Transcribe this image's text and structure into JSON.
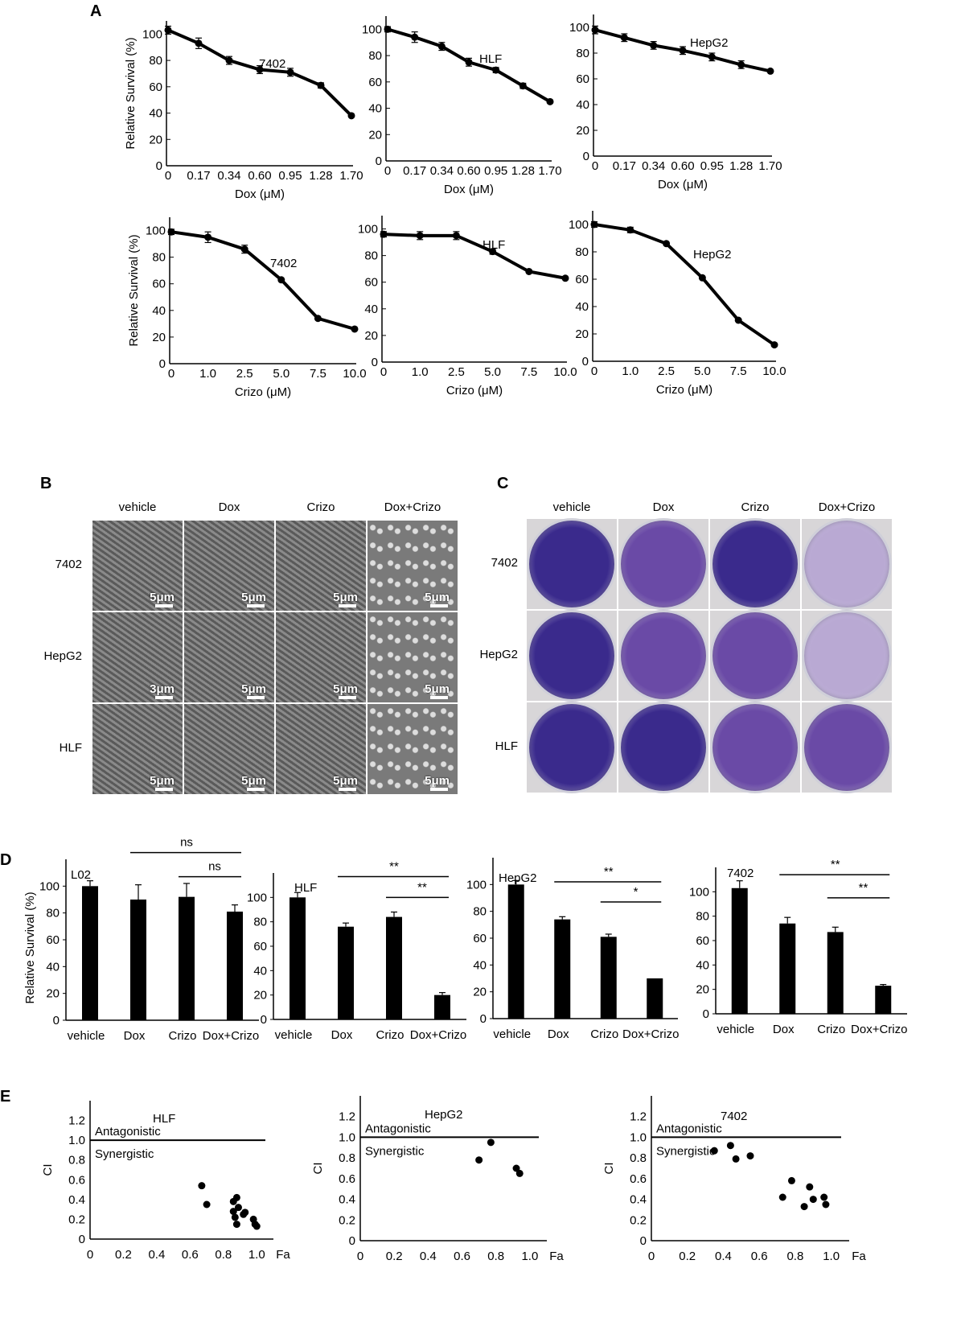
{
  "panels": {
    "A": "A",
    "B": "B",
    "C": "C",
    "D": "D",
    "E": "E"
  },
  "colors": {
    "line": "#000000",
    "bar": "#000000",
    "stain_dark": "#3a2a8c",
    "stain_mid": "#6a4aa6",
    "stain_light": "#b9a9d3",
    "micro": "#6d6d6d"
  },
  "chart_data": [
    {
      "panel": "A",
      "type": "line",
      "label": "7402",
      "xlabel": "Dox (μM)",
      "ylabel": "Relative Survival (%)",
      "x_ticks": [
        "0",
        "0.17",
        "0.34",
        "0.60",
        "0.95",
        "1.28",
        "1.70"
      ],
      "y_ticks": [
        "0",
        "20",
        "40",
        "60",
        "80",
        "100"
      ],
      "ylim": [
        0,
        110
      ],
      "series": [
        {
          "values": [
            103,
            93,
            80,
            73,
            71,
            61,
            38
          ],
          "errors": [
            3,
            4,
            3,
            3,
            3,
            2,
            0
          ]
        }
      ]
    },
    {
      "panel": "A",
      "type": "line",
      "label": "HLF",
      "xlabel": "Dox (μM)",
      "ylabel": "",
      "x_ticks": [
        "0",
        "0.17",
        "0.34",
        "0.60",
        "0.95",
        "1.28",
        "1.70"
      ],
      "y_ticks": [
        "0",
        "20",
        "40",
        "60",
        "80",
        "100"
      ],
      "ylim": [
        0,
        110
      ],
      "series": [
        {
          "values": [
            100,
            94,
            87,
            75,
            69,
            57,
            45
          ],
          "errors": [
            2,
            4,
            3,
            3,
            2,
            2,
            0
          ]
        }
      ]
    },
    {
      "panel": "A",
      "type": "line",
      "label": "HepG2",
      "xlabel": "Dox (μM)",
      "ylabel": "",
      "x_ticks": [
        "0",
        "0.17",
        "0.34",
        "0.60",
        "0.95",
        "1.28",
        "1.70"
      ],
      "y_ticks": [
        "0",
        "20",
        "40",
        "60",
        "80",
        "100"
      ],
      "ylim": [
        0,
        110
      ],
      "series": [
        {
          "values": [
            98,
            92,
            86,
            82,
            77,
            71,
            66
          ],
          "errors": [
            3,
            3,
            3,
            3,
            3,
            3,
            0
          ]
        }
      ]
    },
    {
      "panel": "A",
      "type": "line",
      "label": "7402",
      "xlabel": "Crizo (μM)",
      "ylabel": "Relative Survival (%)",
      "x_ticks": [
        "0",
        "1.0",
        "2.5",
        "5.0",
        "7.5",
        "10.0"
      ],
      "y_ticks": [
        "0",
        "20",
        "40",
        "60",
        "80",
        "100"
      ],
      "ylim": [
        0,
        110
      ],
      "series": [
        {
          "x": [
            0,
            1,
            2,
            3,
            4,
            5
          ],
          "values": [
            99,
            95,
            86,
            63,
            34,
            26
          ],
          "errors": [
            2,
            4,
            3,
            0,
            0,
            0
          ]
        }
      ]
    },
    {
      "panel": "A",
      "type": "line",
      "label": "HLF",
      "xlabel": "Crizo (μM)",
      "ylabel": "",
      "x_ticks": [
        "0",
        "1.0",
        "2.5",
        "5.0",
        "7.5",
        "10.0"
      ],
      "y_ticks": [
        "0",
        "20",
        "40",
        "60",
        "80",
        "100"
      ],
      "ylim": [
        0,
        110
      ],
      "series": [
        {
          "values": [
            96,
            95,
            95,
            83,
            68,
            63
          ],
          "errors": [
            2,
            3,
            3,
            2,
            0,
            0
          ]
        }
      ]
    },
    {
      "panel": "A",
      "type": "line",
      "label": "HepG2",
      "xlabel": "Crizo (μM)",
      "ylabel": "",
      "x_ticks": [
        "0",
        "1.0",
        "2.5",
        "5.0",
        "7.5",
        "10.0"
      ],
      "y_ticks": [
        "0",
        "20",
        "40",
        "60",
        "80",
        "100"
      ],
      "ylim": [
        0,
        110
      ],
      "series": [
        {
          "values": [
            100,
            96,
            86,
            61,
            30,
            12
          ],
          "errors": [
            2,
            2,
            1,
            0,
            0,
            0
          ]
        }
      ]
    },
    {
      "panel": "D",
      "type": "bar",
      "label": "L02",
      "ylabel": "Relative Survival (%)",
      "categories": [
        "vehicle",
        "Dox",
        "Crizo",
        "Dox+Crizo"
      ],
      "values": [
        100,
        90,
        92,
        81
      ],
      "errors": [
        4,
        11,
        10,
        5
      ],
      "y_ticks": [
        "0",
        "20",
        "40",
        "60",
        "80",
        "100"
      ],
      "ylim": [
        0,
        120
      ],
      "significance": [
        {
          "from": 1,
          "to": 3,
          "label": "ns",
          "level": 125
        },
        {
          "from": 2,
          "to": 3,
          "label": "ns",
          "level": 107
        }
      ]
    },
    {
      "panel": "D",
      "type": "bar",
      "label": "HLF",
      "ylabel": "",
      "categories": [
        "vehicle",
        "Dox",
        "Crizo",
        "Dox+Crizo"
      ],
      "values": [
        100,
        76,
        84,
        20
      ],
      "errors": [
        4,
        3,
        4,
        2
      ],
      "y_ticks": [
        "0",
        "20",
        "40",
        "60",
        "80",
        "100"
      ],
      "ylim": [
        0,
        120
      ],
      "significance": [
        {
          "from": 1,
          "to": 3,
          "label": "**",
          "level": 117
        },
        {
          "from": 2,
          "to": 3,
          "label": "**",
          "level": 100
        }
      ]
    },
    {
      "panel": "D",
      "type": "bar",
      "label": "HepG2",
      "ylabel": "",
      "categories": [
        "vehicle",
        "Dox",
        "Crizo",
        "Dox+Crizo"
      ],
      "values": [
        100,
        74,
        61,
        30
      ],
      "errors": [
        3,
        2,
        2,
        0
      ],
      "y_ticks": [
        "0",
        "20",
        "40",
        "60",
        "80",
        "100"
      ],
      "ylim": [
        0,
        120
      ],
      "significance": [
        {
          "from": 1,
          "to": 3,
          "label": "**",
          "level": 102
        },
        {
          "from": 2,
          "to": 3,
          "label": "*",
          "level": 87
        }
      ]
    },
    {
      "panel": "D",
      "type": "bar",
      "label": "7402",
      "ylabel": "",
      "categories": [
        "vehicle",
        "Dox",
        "Crizo",
        "Dox+Crizo"
      ],
      "values": [
        103,
        74,
        67,
        23
      ],
      "errors": [
        6,
        5,
        4,
        1
      ],
      "y_ticks": [
        "0",
        "20",
        "40",
        "60",
        "80",
        "100"
      ],
      "ylim": [
        0,
        120
      ],
      "significance": [
        {
          "from": 1,
          "to": 3,
          "label": "**",
          "level": 114
        },
        {
          "from": 2,
          "to": 3,
          "label": "**",
          "level": 95
        }
      ]
    },
    {
      "panel": "E",
      "type": "scatter",
      "label": "HLF",
      "xlabel": "Fa",
      "ylabel": "CI",
      "x_ticks": [
        "0",
        "0.2",
        "0.4",
        "0.6",
        "0.8",
        "1.0"
      ],
      "y_ticks": [
        "0",
        "0.2",
        "0.4",
        "0.6",
        "0.8",
        "1.0",
        "1.2"
      ],
      "xlim": [
        0,
        1.1
      ],
      "ylim": [
        0,
        1.4
      ],
      "reference_line": 1.0,
      "upper_label": "Antagonistic",
      "lower_label": "Synergistic",
      "points": [
        [
          0.67,
          0.54
        ],
        [
          0.7,
          0.35
        ],
        [
          0.86,
          0.38
        ],
        [
          0.86,
          0.28
        ],
        [
          0.87,
          0.22
        ],
        [
          0.88,
          0.42
        ],
        [
          0.88,
          0.15
        ],
        [
          0.89,
          0.32
        ],
        [
          0.92,
          0.25
        ],
        [
          0.93,
          0.27
        ],
        [
          0.98,
          0.2
        ],
        [
          0.99,
          0.15
        ],
        [
          1.0,
          0.13
        ]
      ]
    },
    {
      "panel": "E",
      "type": "scatter",
      "label": "HepG2",
      "xlabel": "Fa",
      "ylabel": "CI",
      "x_ticks": [
        "0",
        "0.2",
        "0.4",
        "0.6",
        "0.8",
        "1.0"
      ],
      "y_ticks": [
        "0",
        "0.2",
        "0.4",
        "0.6",
        "0.8",
        "1.0",
        "1.2"
      ],
      "xlim": [
        0,
        1.1
      ],
      "ylim": [
        0,
        1.4
      ],
      "reference_line": 1.0,
      "upper_label": "Antagonistic",
      "lower_label": "Synergistic",
      "points": [
        [
          0.7,
          0.78
        ],
        [
          0.77,
          0.95
        ],
        [
          0.92,
          0.7
        ],
        [
          0.94,
          0.65
        ]
      ]
    },
    {
      "panel": "E",
      "type": "scatter",
      "label": "7402",
      "xlabel": "Fa",
      "ylabel": "CI",
      "x_ticks": [
        "0",
        "0.2",
        "0.4",
        "0.6",
        "0.8",
        "1.0"
      ],
      "y_ticks": [
        "0",
        "0.2",
        "0.4",
        "0.6",
        "0.8",
        "1.0",
        "1.2"
      ],
      "xlim": [
        0,
        1.1
      ],
      "ylim": [
        0,
        1.4
      ],
      "reference_line": 1.0,
      "upper_label": "Antagonistic",
      "lower_label": "Synergistic",
      "points": [
        [
          0.35,
          0.87
        ],
        [
          0.44,
          0.92
        ],
        [
          0.47,
          0.79
        ],
        [
          0.55,
          0.82
        ],
        [
          0.73,
          0.42
        ],
        [
          0.78,
          0.58
        ],
        [
          0.85,
          0.33
        ],
        [
          0.88,
          0.52
        ],
        [
          0.9,
          0.4
        ],
        [
          0.96,
          0.42
        ],
        [
          0.97,
          0.35
        ]
      ]
    }
  ],
  "panel_b": {
    "columns": [
      "vehicle",
      "Dox",
      "Crizo",
      "Dox+Crizo"
    ],
    "rows": [
      "7402",
      "HepG2",
      "HLF"
    ],
    "scale_labels": [
      [
        "5μm",
        "5μm",
        "5μm",
        "5μm"
      ],
      [
        "3μm",
        "5μm",
        "5μm",
        "5μm"
      ],
      [
        "5μm",
        "5μm",
        "5μm",
        "5μm"
      ]
    ]
  },
  "panel_c": {
    "columns": [
      "vehicle",
      "Dox",
      "Crizo",
      "Dox+Crizo"
    ],
    "rows": [
      "7402",
      "HepG2",
      "HLF"
    ]
  }
}
